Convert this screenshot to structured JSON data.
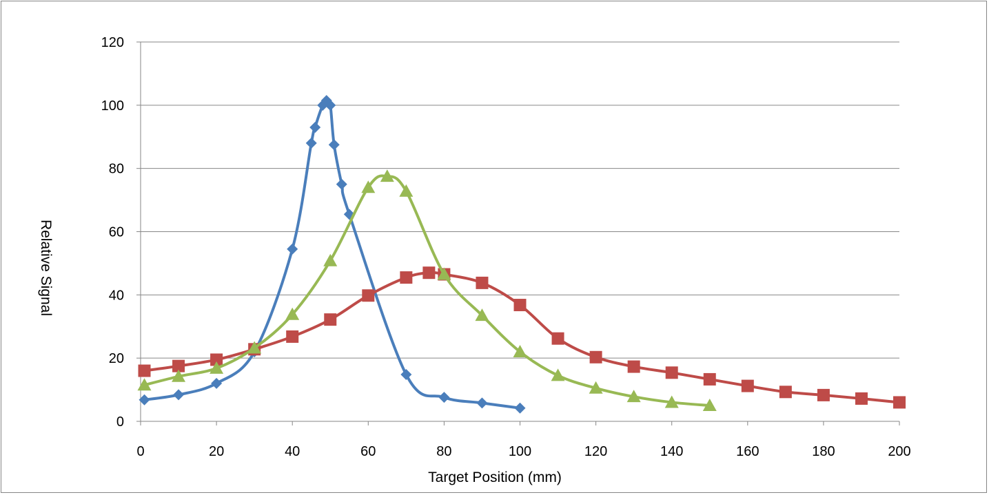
{
  "chart_data": {
    "type": "line",
    "title": "",
    "xlabel": "Target Position (mm)",
    "ylabel": "Relative Signal",
    "xlim": [
      0,
      200
    ],
    "ylim": [
      0,
      120
    ],
    "x_ticks": [
      0,
      20,
      40,
      60,
      80,
      100,
      120,
      140,
      160,
      180,
      200
    ],
    "y_ticks": [
      0,
      20,
      40,
      60,
      80,
      100,
      120
    ],
    "grid": "horizontal",
    "legend": "none",
    "smooth": true,
    "series": [
      {
        "color": "#4a7ebb",
        "marker": "diamond",
        "points": [
          [
            1,
            6.8
          ],
          [
            10,
            8.4
          ],
          [
            20,
            12.0
          ],
          [
            30,
            22.0
          ],
          [
            40,
            54.5
          ],
          [
            45,
            88.0
          ],
          [
            46,
            93.0
          ],
          [
            48,
            100.0
          ],
          [
            49,
            101.5
          ],
          [
            50,
            100.0
          ],
          [
            51,
            87.5
          ],
          [
            53,
            75.0
          ],
          [
            55,
            65.5
          ],
          [
            70,
            14.8
          ],
          [
            80,
            7.6
          ],
          [
            90,
            5.8
          ],
          [
            100,
            4.2
          ]
        ]
      },
      {
        "color": "#be4b48",
        "marker": "square",
        "points": [
          [
            1,
            16.0
          ],
          [
            10,
            17.5
          ],
          [
            20,
            19.5
          ],
          [
            30,
            22.8
          ],
          [
            40,
            26.8
          ],
          [
            50,
            32.2
          ],
          [
            60,
            39.8
          ],
          [
            70,
            45.5
          ],
          [
            76,
            47.0
          ],
          [
            80,
            46.5
          ],
          [
            90,
            43.8
          ],
          [
            100,
            36.8
          ],
          [
            110,
            26.2
          ],
          [
            120,
            20.3
          ],
          [
            130,
            17.3
          ],
          [
            140,
            15.4
          ],
          [
            150,
            13.3
          ],
          [
            160,
            11.2
          ],
          [
            170,
            9.3
          ],
          [
            180,
            8.3
          ],
          [
            190,
            7.2
          ],
          [
            200,
            6.0
          ]
        ]
      },
      {
        "color": "#98b954",
        "marker": "triangle",
        "points": [
          [
            1,
            11.5
          ],
          [
            10,
            14.2
          ],
          [
            20,
            16.8
          ],
          [
            30,
            23.2
          ],
          [
            40,
            33.8
          ],
          [
            50,
            50.8
          ],
          [
            60,
            74.0
          ],
          [
            65,
            77.5
          ],
          [
            70,
            72.8
          ],
          [
            80,
            46.5
          ],
          [
            90,
            33.5
          ],
          [
            100,
            22.0
          ],
          [
            110,
            14.5
          ],
          [
            120,
            10.5
          ],
          [
            130,
            7.8
          ],
          [
            140,
            6.0
          ],
          [
            150,
            5.0
          ]
        ]
      }
    ]
  }
}
